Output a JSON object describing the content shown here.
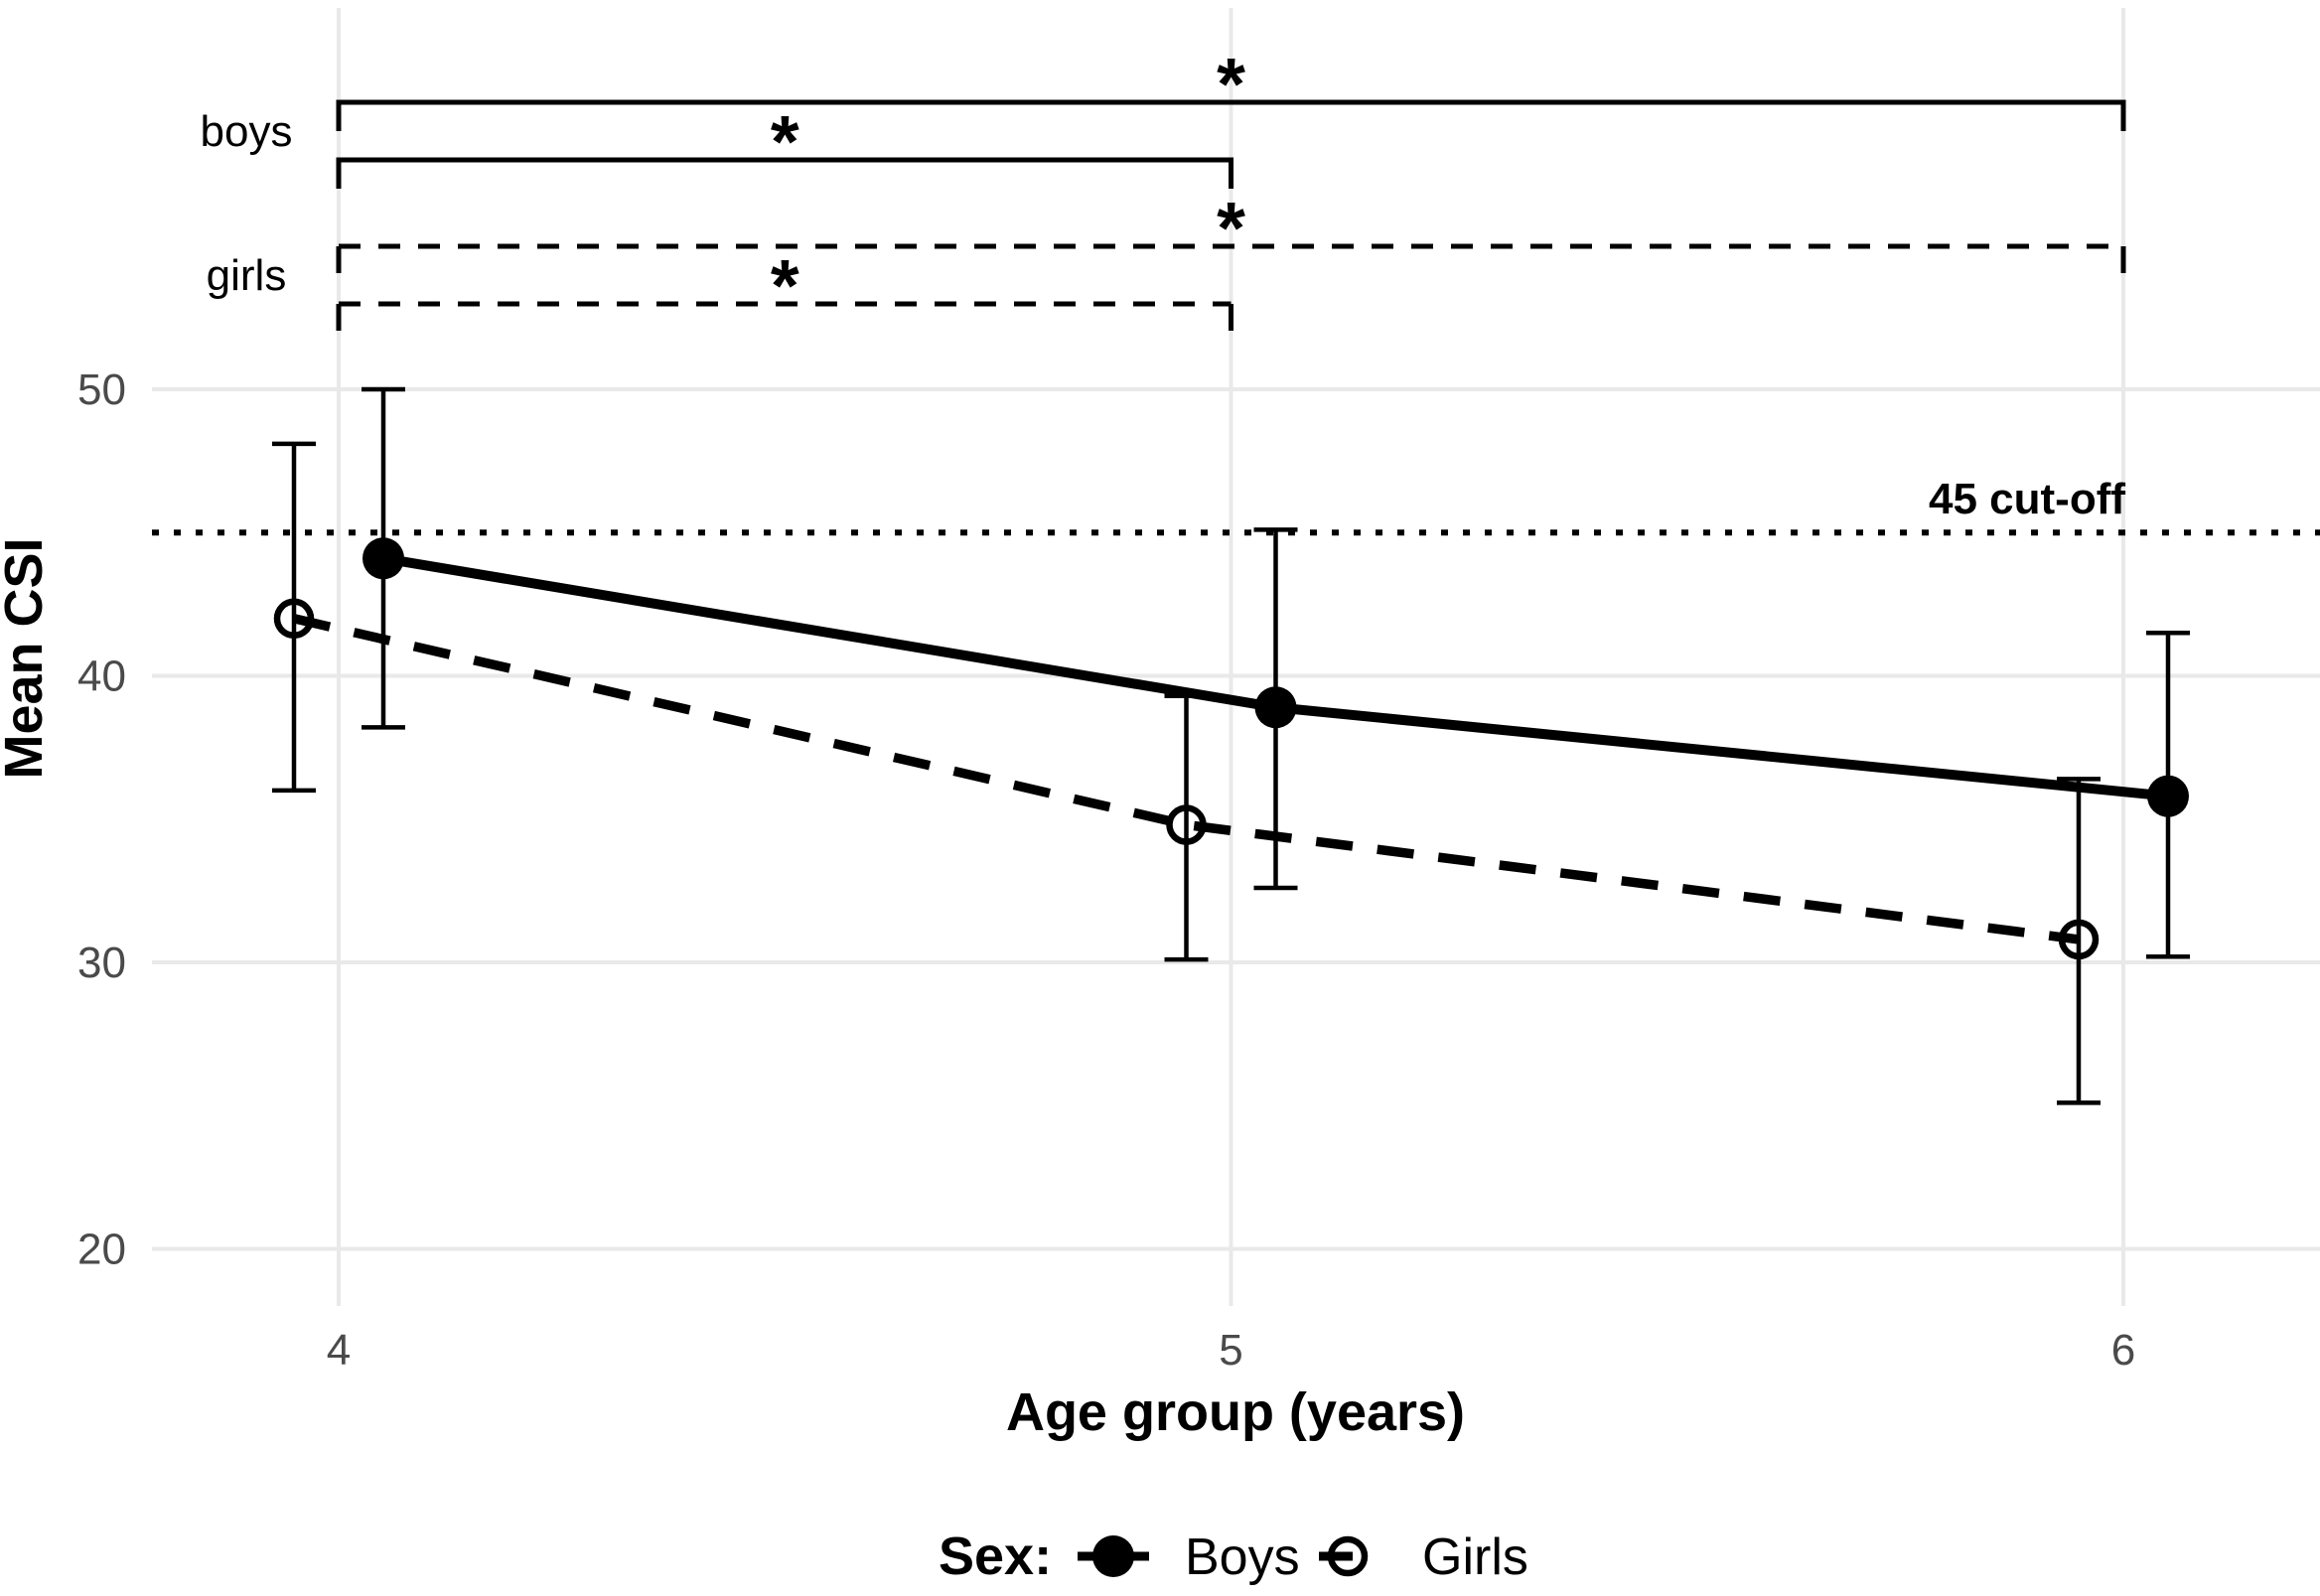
{
  "chart_data": {
    "type": "line",
    "title": "",
    "xlabel": "Age group (years)",
    "ylabel": "Mean CSI",
    "x": [
      4,
      5,
      6
    ],
    "x_tick_labels": [
      "4",
      "5",
      "6"
    ],
    "y_ticks": [
      50,
      40,
      30,
      20
    ],
    "y_tick_labels": [
      "50",
      "40",
      "30",
      "20"
    ],
    "ylim": [
      18,
      63.5
    ],
    "grid": true,
    "legend_position": "bottom",
    "series": [
      {
        "name": "Boys",
        "group_label": "boys",
        "marker": "filled-circle",
        "line": "solid",
        "values": [
          44.1,
          38.9,
          35.8
        ],
        "ci_low": [
          38.2,
          32.6,
          30.2
        ],
        "ci_high": [
          50.0,
          45.1,
          41.5
        ]
      },
      {
        "name": "Girls",
        "group_label": "girls",
        "marker": "open-circle",
        "line": "dashed",
        "values": [
          42.0,
          34.8,
          30.8
        ],
        "ci_low": [
          36.0,
          30.1,
          25.1
        ],
        "ci_high": [
          48.1,
          39.3,
          36.4
        ]
      }
    ],
    "cutoff_line": {
      "value": 45,
      "label": "45 cut-off",
      "style": "dotted"
    },
    "significance_brackets": [
      {
        "group": "boys",
        "from": 4,
        "to": 6,
        "style": "solid",
        "symbol": "*"
      },
      {
        "group": "boys",
        "from": 4,
        "to": 5,
        "style": "solid",
        "symbol": "*"
      },
      {
        "group": "girls",
        "from": 4,
        "to": 6,
        "style": "dashed",
        "symbol": "*"
      },
      {
        "group": "girls",
        "from": 4,
        "to": 5,
        "style": "dashed",
        "symbol": "*"
      }
    ],
    "bracket_group_labels": [
      "boys",
      "girls"
    ],
    "legend": {
      "title": "Sex:",
      "entries": [
        {
          "label": "Boys",
          "marker": "filled-circle",
          "line": "solid"
        },
        {
          "label": "Girls",
          "marker": "open-circle",
          "line": "dashed"
        }
      ]
    },
    "colors": {
      "foreground": "#000000",
      "gridline": "#e9e9e9",
      "tick_label": "#4a4a4a",
      "background": "#ffffff"
    }
  }
}
